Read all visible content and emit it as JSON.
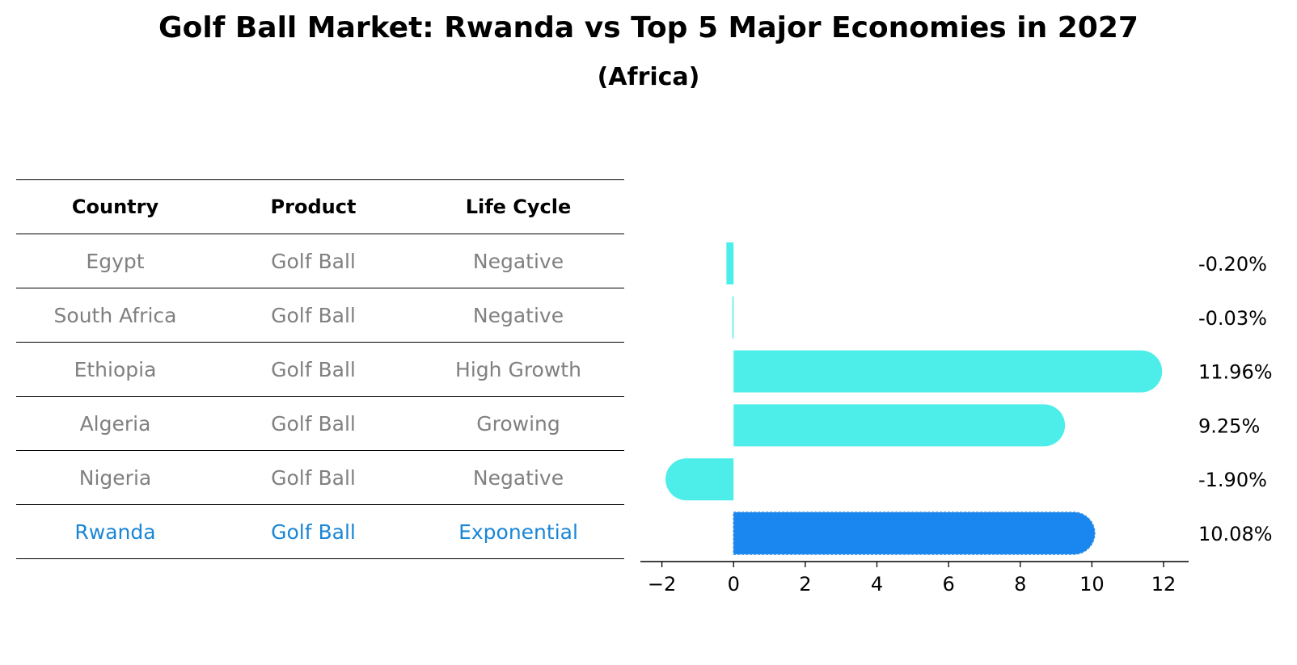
{
  "title": "Golf Ball Market: Rwanda vs Top 5 Major Economies in 2027",
  "subtitle": "(Africa)",
  "table": {
    "headers": [
      "Country",
      "Product",
      "Life Cycle"
    ],
    "rows": [
      {
        "country": "Egypt",
        "product": "Golf Ball",
        "life_cycle": "Negative"
      },
      {
        "country": "South Africa",
        "product": "Golf Ball",
        "life_cycle": "Negative"
      },
      {
        "country": "Ethiopia",
        "product": "Golf Ball",
        "life_cycle": "High Growth"
      },
      {
        "country": "Algeria",
        "product": "Golf Ball",
        "life_cycle": "Growing"
      },
      {
        "country": "Nigeria",
        "product": "Golf Ball",
        "life_cycle": "Negative"
      },
      {
        "country": "Rwanda",
        "product": "Golf Ball",
        "life_cycle": "Exponential"
      }
    ],
    "highlight_row": 5
  },
  "chart_data": {
    "type": "bar",
    "orientation": "horizontal",
    "categories": [
      "Egypt",
      "South Africa",
      "Ethiopia",
      "Algeria",
      "Nigeria",
      "Rwanda"
    ],
    "values": [
      -0.2,
      -0.03,
      11.96,
      9.25,
      -1.9,
      10.08
    ],
    "value_labels": [
      "-0.20%",
      "-0.03%",
      "11.96%",
      "9.25%",
      "-1.90%",
      "10.08%"
    ],
    "xlim": [
      -2.6,
      12.7
    ],
    "xticks": [
      -2,
      0,
      2,
      4,
      6,
      8,
      10,
      12
    ],
    "xtick_labels": [
      "−2",
      "0",
      "2",
      "4",
      "6",
      "8",
      "10",
      "12"
    ],
    "highlight_index": 5,
    "colors": {
      "default": "#4deeea",
      "highlight": "#1a86f0"
    }
  },
  "colors": {
    "highlight_text": "#1a86d6",
    "muted_text": "#808080"
  }
}
